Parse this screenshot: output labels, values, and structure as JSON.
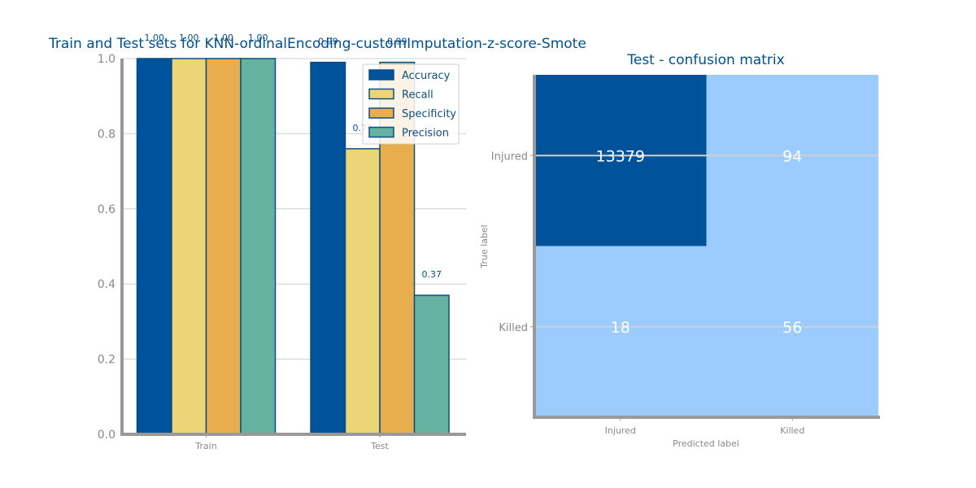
{
  "colors": {
    "accuracy": "#00529b",
    "recall": "#ecd576",
    "specificity": "#e8ad4c",
    "precision": "#66b2a0",
    "edge": "#0b4f86",
    "title": "#00508f",
    "cm_dark": "#00529b",
    "cm_light": "#9ccbff"
  },
  "chart_data": [
    {
      "type": "bar",
      "title": "Train and Test sets for KNN-ordinalEncoding-customImputation-z-score-Smote",
      "xlabel": "",
      "ylabel": "",
      "categories": [
        "Train",
        "Test"
      ],
      "ylim": [
        0,
        1.0
      ],
      "yticks": [
        "0.0",
        "0.2",
        "0.4",
        "0.6",
        "0.8",
        "1.0"
      ],
      "grid": true,
      "legend_position": "top-right",
      "series": [
        {
          "name": "Accuracy",
          "values": [
            1.0,
            0.99
          ],
          "labels": [
            "1.00",
            "0.99"
          ]
        },
        {
          "name": "Recall",
          "values": [
            1.0,
            0.76
          ],
          "labels": [
            "1.00",
            "0.76"
          ]
        },
        {
          "name": "Specificity",
          "values": [
            1.0,
            0.99
          ],
          "labels": [
            "1.00",
            "0.99"
          ]
        },
        {
          "name": "Precision",
          "values": [
            1.0,
            0.37
          ],
          "labels": [
            "1.00",
            "0.37"
          ]
        }
      ]
    },
    {
      "type": "heatmap",
      "title": "Test - confusion matrix",
      "xlabel": "Predicted label",
      "ylabel": "True label",
      "x_categories": [
        "Injured",
        "Killed"
      ],
      "y_categories": [
        "Injured",
        "Killed"
      ],
      "values": [
        [
          13379,
          94
        ],
        [
          18,
          56
        ]
      ]
    }
  ]
}
